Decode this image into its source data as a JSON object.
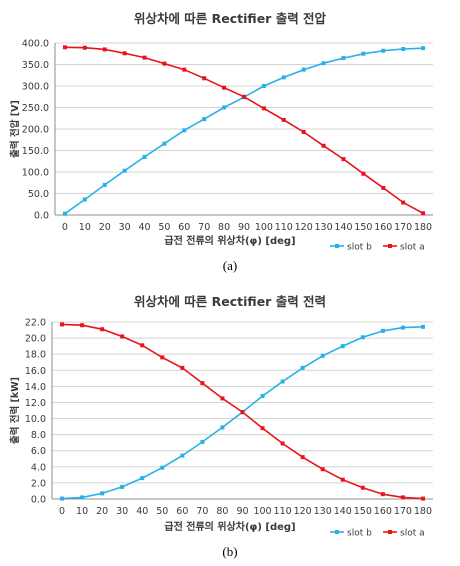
{
  "captions": {
    "a": "(a)",
    "b": "(b)"
  },
  "colors": {
    "slot_b": "#2ab0e8",
    "slot_a": "#e8131b",
    "grid": "#d4d4d4",
    "axis": "#8c8c8c",
    "text": "#3a3a3a"
  },
  "chart_data": [
    {
      "type": "line",
      "title": "위상차에 따른 Rectifier 출력 전압",
      "xlabel": "급전 전류의 위상차(φ) [deg]",
      "ylabel": "출력 전압 [V]",
      "x": [
        0,
        10,
        20,
        30,
        40,
        50,
        60,
        70,
        80,
        90,
        100,
        110,
        120,
        130,
        140,
        150,
        160,
        170,
        180
      ],
      "xticks": [
        "0",
        "10",
        "20",
        "30",
        "40",
        "50",
        "60",
        "70",
        "80",
        "90",
        "100",
        "110",
        "120",
        "130",
        "140",
        "150",
        "160",
        "170",
        "180"
      ],
      "ylim": [
        0,
        400
      ],
      "yticks": [
        "0.0",
        "50.0",
        "100.0",
        "150.0",
        "200.0",
        "250.0",
        "300.0",
        "350.0",
        "400.0"
      ],
      "grid": "horizontal",
      "legend_position": "bottom-right",
      "series": [
        {
          "name": "slot b",
          "values": [
            3,
            36,
            70,
            103,
            135,
            166,
            197,
            223,
            250,
            274,
            300,
            320,
            338,
            353,
            365,
            375,
            382,
            386,
            388
          ]
        },
        {
          "name": "slot a",
          "values": [
            390,
            389,
            385,
            376,
            366,
            352,
            338,
            318,
            296,
            275,
            248,
            221,
            193,
            161,
            130,
            96,
            63,
            29,
            4
          ]
        }
      ]
    },
    {
      "type": "line",
      "title": "위상차에 따른 Rectifier 출력 전력",
      "xlabel": "급전 전류의 위상차(φ) [deg]",
      "ylabel": "출력 전력 [kW]",
      "x": [
        0,
        10,
        20,
        30,
        40,
        50,
        60,
        70,
        80,
        90,
        100,
        110,
        120,
        130,
        140,
        150,
        160,
        170,
        180
      ],
      "xticks": [
        "0",
        "10",
        "20",
        "30",
        "40",
        "50",
        "60",
        "70",
        "80",
        "90",
        "100",
        "110",
        "120",
        "130",
        "140",
        "150",
        "160",
        "170",
        "180"
      ],
      "ylim": [
        0,
        22
      ],
      "yticks": [
        "0.0",
        "2.0",
        "4.0",
        "6.0",
        "8.0",
        "10.0",
        "12.0",
        "14.0",
        "16.0",
        "18.0",
        "20.0",
        "22.0"
      ],
      "grid": "horizontal",
      "legend_position": "bottom-right",
      "series": [
        {
          "name": "slot b",
          "values": [
            0.05,
            0.2,
            0.7,
            1.5,
            2.6,
            3.9,
            5.4,
            7.1,
            8.9,
            10.8,
            12.8,
            14.6,
            16.3,
            17.8,
            19.0,
            20.1,
            20.9,
            21.3,
            21.4
          ]
        },
        {
          "name": "slot a",
          "values": [
            21.7,
            21.6,
            21.1,
            20.2,
            19.1,
            17.6,
            16.3,
            14.4,
            12.5,
            10.8,
            8.8,
            6.9,
            5.2,
            3.7,
            2.4,
            1.4,
            0.6,
            0.2,
            0.05
          ]
        }
      ]
    }
  ]
}
